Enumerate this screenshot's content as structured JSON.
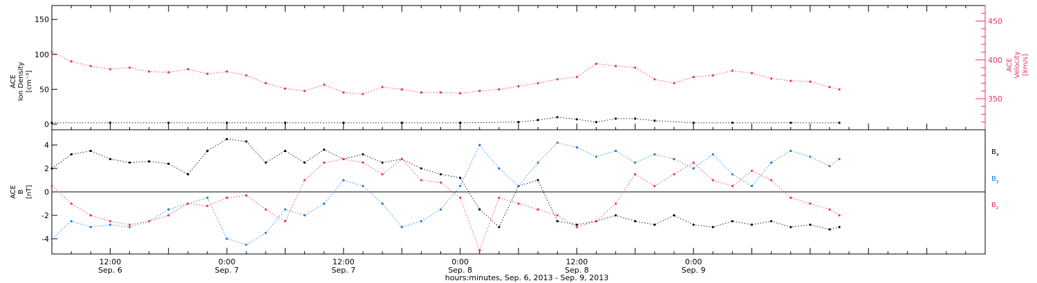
{
  "colors": {
    "density": "#000000",
    "velocity": "#e8325e",
    "bx": "#000000",
    "by": "#1f7ad6",
    "bz": "#e8325e",
    "axes": "#000000"
  },
  "chart_data": [
    {
      "type": "scatter",
      "panel": "top",
      "ylabel": [
        "ACE",
        "Ion Density",
        "[cm⁻³]"
      ],
      "ylim": [
        -8,
        170
      ],
      "yticks": [
        0,
        50,
        100,
        150
      ],
      "y2label": [
        "ACE",
        "Velocity",
        "[km/s]"
      ],
      "y2lim": [
        310,
        470
      ],
      "y2ticks": [
        350,
        400,
        450
      ],
      "grid": false,
      "series": [
        {
          "name": "",
          "axis": "left",
          "color_key": "density",
          "x": [
            0,
            6,
            12,
            18,
            24,
            30,
            36,
            42,
            48,
            50,
            52,
            54,
            56,
            58,
            60,
            62,
            66,
            70,
            76,
            81
          ],
          "y": [
            2,
            2,
            2,
            2,
            2,
            2,
            2,
            2,
            3,
            6,
            10,
            7,
            3,
            8,
            8,
            5,
            2,
            2,
            2,
            2
          ]
        },
        {
          "name": "",
          "axis": "right",
          "color_key": "velocity",
          "x": [
            0,
            2,
            4,
            6,
            8,
            10,
            12,
            14,
            16,
            18,
            20,
            22,
            24,
            26,
            28,
            30,
            32,
            34,
            36,
            38,
            40,
            42,
            44,
            46,
            48,
            50,
            52,
            54,
            56,
            58,
            60,
            62,
            64,
            66,
            68,
            70,
            72,
            74,
            76,
            78,
            80,
            81
          ],
          "y": [
            410,
            398,
            392,
            388,
            390,
            385,
            384,
            388,
            382,
            385,
            380,
            370,
            363,
            360,
            368,
            358,
            356,
            365,
            362,
            358,
            358,
            357,
            360,
            362,
            366,
            370,
            375,
            378,
            395,
            392,
            390,
            375,
            370,
            378,
            380,
            386,
            383,
            376,
            373,
            372,
            365,
            362
          ]
        }
      ]
    },
    {
      "type": "scatter",
      "panel": "bottom",
      "ylabel": [
        "ACE",
        "B",
        "[nT]"
      ],
      "ylim": [
        -5.3,
        5.3
      ],
      "yticks": [
        -4,
        -2,
        0,
        2,
        4
      ],
      "xlabel": "hours:minutes, Sep.  6, 2013 - Sep.  9, 2013",
      "xlim": [
        0,
        96
      ],
      "xticks": [
        {
          "x": 6,
          "time": "12:00",
          "date": "Sep. 6"
        },
        {
          "x": 18,
          "time": "0:00",
          "date": "Sep. 7"
        },
        {
          "x": 30,
          "time": "12:00",
          "date": "Sep. 7"
        },
        {
          "x": 42,
          "time": "0:00",
          "date": "Sep. 8"
        },
        {
          "x": 54,
          "time": "12:00",
          "date": "Sep. 8"
        },
        {
          "x": 66,
          "time": "0:00",
          "date": "Sep. 9"
        }
      ],
      "series": [
        {
          "name": "Bx",
          "color_key": "bx",
          "x": [
            0,
            2,
            4,
            6,
            8,
            10,
            12,
            14,
            16,
            18,
            20,
            22,
            24,
            26,
            28,
            30,
            32,
            34,
            36,
            38,
            40,
            42,
            44,
            46,
            48,
            50,
            52,
            54,
            56,
            58,
            60,
            62,
            64,
            66,
            68,
            70,
            72,
            74,
            76,
            78,
            80,
            81
          ],
          "y": [
            2,
            3.2,
            3.5,
            2.8,
            2.5,
            2.6,
            2.4,
            1.5,
            3.5,
            4.5,
            4.3,
            2.5,
            3.5,
            2.5,
            3.6,
            2.8,
            3.2,
            2.5,
            2.8,
            2,
            1.5,
            1.2,
            -1.5,
            -3,
            0.5,
            1,
            -2.5,
            -2.8,
            -2.5,
            -2,
            -2.5,
            -2.8,
            -2,
            -2.8,
            -3,
            -2.5,
            -2.8,
            -2.5,
            -3,
            -2.8,
            -3.2,
            -3
          ]
        },
        {
          "name": "By",
          "color_key": "by",
          "x": [
            0,
            2,
            4,
            6,
            8,
            10,
            12,
            14,
            16,
            18,
            20,
            22,
            24,
            26,
            28,
            30,
            32,
            34,
            36,
            38,
            40,
            42,
            44,
            46,
            48,
            50,
            52,
            54,
            56,
            58,
            60,
            62,
            64,
            66,
            68,
            70,
            72,
            74,
            76,
            78,
            80,
            81
          ],
          "y": [
            -4,
            -2.5,
            -3,
            -2.8,
            -3,
            -2.5,
            -1.5,
            -1,
            -0.5,
            -4,
            -4.5,
            -3.5,
            -1.5,
            -2,
            -1,
            1,
            0.5,
            -1,
            -3,
            -2.5,
            -1.5,
            0.5,
            4,
            2,
            0.5,
            2.5,
            4.2,
            3.8,
            3,
            3.5,
            2.5,
            3.2,
            2.8,
            2,
            3.2,
            1.5,
            0.5,
            2.5,
            3.5,
            3,
            2.2,
            2.8
          ]
        },
        {
          "name": "Bz",
          "color_key": "bz",
          "x": [
            0,
            2,
            4,
            6,
            8,
            10,
            12,
            14,
            16,
            18,
            20,
            22,
            24,
            26,
            28,
            30,
            32,
            34,
            36,
            38,
            40,
            42,
            44,
            46,
            48,
            50,
            52,
            54,
            56,
            58,
            60,
            62,
            64,
            66,
            68,
            70,
            72,
            74,
            76,
            78,
            80,
            81
          ],
          "y": [
            0.5,
            -1,
            -2,
            -2.5,
            -2.8,
            -2.5,
            -2,
            -1,
            -1.2,
            -0.5,
            -0.3,
            -1.5,
            -2.5,
            1,
            2.5,
            2.8,
            2.5,
            1.5,
            2.8,
            1,
            0.8,
            -0.5,
            -5,
            -0.5,
            -1,
            -1.5,
            -2,
            -3,
            -2.5,
            -1,
            1.5,
            0.5,
            1.5,
            2.5,
            1,
            0.5,
            1.8,
            1,
            -0.5,
            -1,
            -1.5,
            -2
          ]
        }
      ]
    }
  ],
  "labels": {
    "bx": {
      "main": "B",
      "sub": "x"
    },
    "by": {
      "main": "B",
      "sub": "y"
    },
    "bz": {
      "main": "B",
      "sub": "z"
    }
  }
}
